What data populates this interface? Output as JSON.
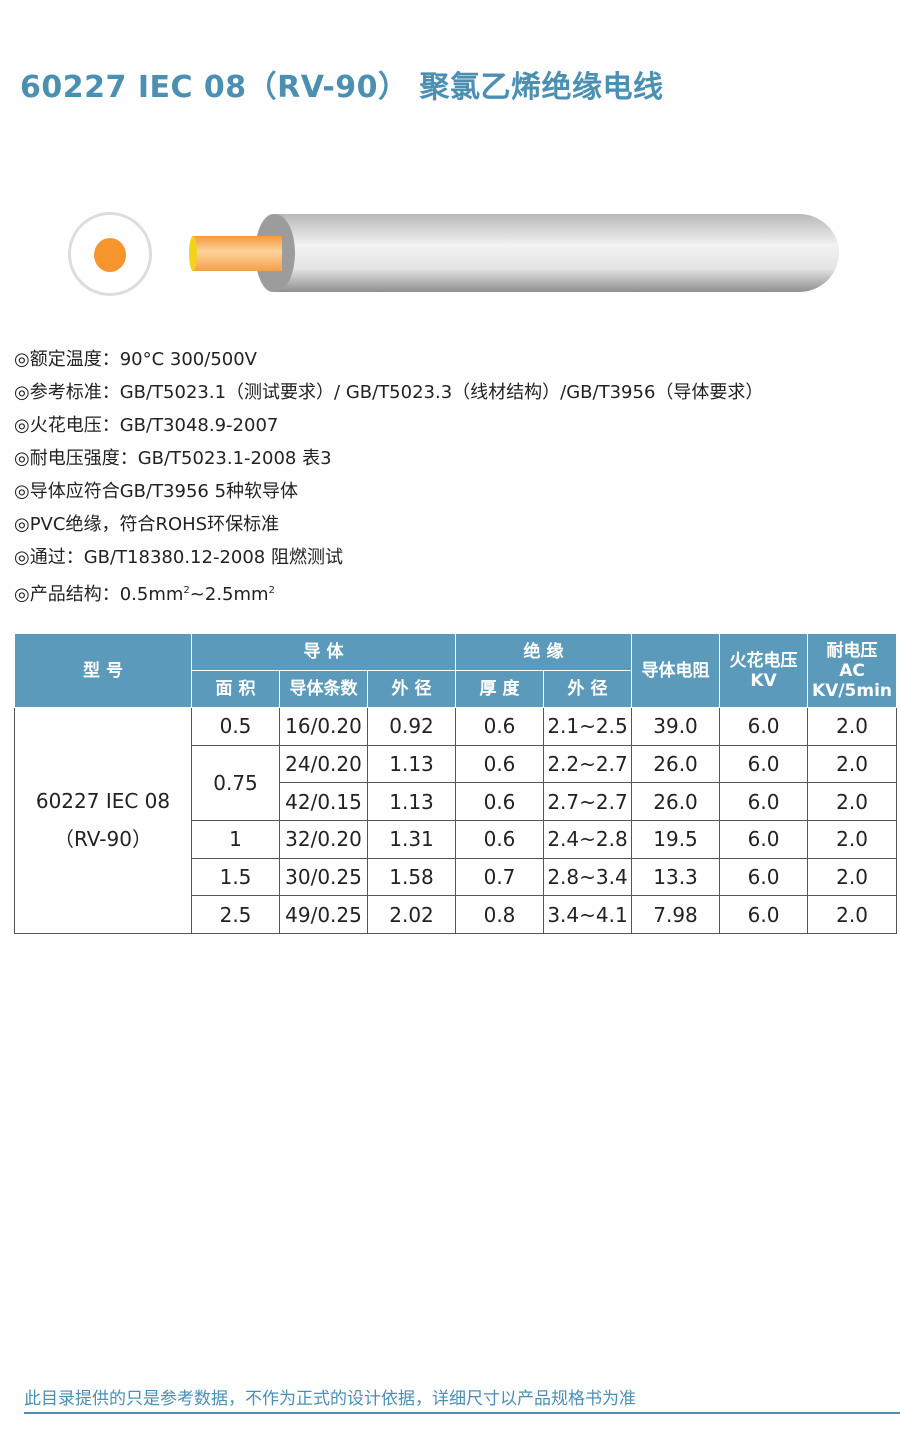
{
  "title": "60227 IEC 08（RV-90） 聚氯乙烯绝缘电线",
  "colors": {
    "accent": "#4b8fb3",
    "header_bg": "#5b9aba",
    "conductor": "#f5952c"
  },
  "specs": [
    "◎额定温度：90°C 300/500V",
    "◎参考标准：GB/T5023.1（测试要求）/ GB/T5023.3（线材结构）/GB/T3956（导体要求）",
    "◎火花电压：GB/T3048.9-2007",
    "◎耐电压强度：GB/T5023.1-2008 表3",
    "◎导体应符合GB/T3956 5种软导体",
    "◎PVC绝缘，符合ROHS环保标准",
    "◎通过：GB/T18380.12-2008 阻燃测试"
  ],
  "spec_structure": {
    "prefix": "◎产品结构：0.5mm",
    "sup1": "2",
    "mid": "~2.5mm",
    "sup2": "2"
  },
  "table": {
    "headers": {
      "model": "型 号",
      "conductor": "导 体",
      "insulation": "绝 缘",
      "area": "面 积",
      "strands": "导体条数",
      "od": "外 径",
      "thickness": "厚 度",
      "ins_od": "外 径",
      "resistance": "导体电阻",
      "spark1": "火花电压",
      "spark2": "KV",
      "withstand1": "耐电压",
      "withstand2": "AC",
      "withstand3": "KV/5min"
    },
    "model1": "60227 IEC 08",
    "model2": "（RV-90）",
    "rows": [
      {
        "area": "0.5",
        "strands": "16/0.20",
        "od": "0.92",
        "thick": "0.6",
        "ins_od": "2.1~2.5",
        "res": "39.0",
        "spark": "6.0",
        "wv": "2.0"
      },
      {
        "area": "0.75",
        "strands": "24/0.20",
        "od": "1.13",
        "thick": "0.6",
        "ins_od": "2.2~2.7",
        "res": "26.0",
        "spark": "6.0",
        "wv": "2.0"
      },
      {
        "area": "",
        "strands": "42/0.15",
        "od": "1.13",
        "thick": "0.6",
        "ins_od": "2.7~2.7",
        "res": "26.0",
        "spark": "6.0",
        "wv": "2.0"
      },
      {
        "area": "1",
        "strands": "32/0.20",
        "od": "1.31",
        "thick": "0.6",
        "ins_od": "2.4~2.8",
        "res": "19.5",
        "spark": "6.0",
        "wv": "2.0"
      },
      {
        "area": "1.5",
        "strands": "30/0.25",
        "od": "1.58",
        "thick": "0.7",
        "ins_od": "2.8~3.4",
        "res": "13.3",
        "spark": "6.0",
        "wv": "2.0"
      },
      {
        "area": "2.5",
        "strands": "49/0.25",
        "od": "2.02",
        "thick": "0.8",
        "ins_od": "3.4~4.1",
        "res": "7.98",
        "spark": "6.0",
        "wv": "2.0"
      }
    ]
  },
  "footer": "此目录提供的只是参考数据，不作为正式的设计依据，详细尺寸以产品规格书为准"
}
